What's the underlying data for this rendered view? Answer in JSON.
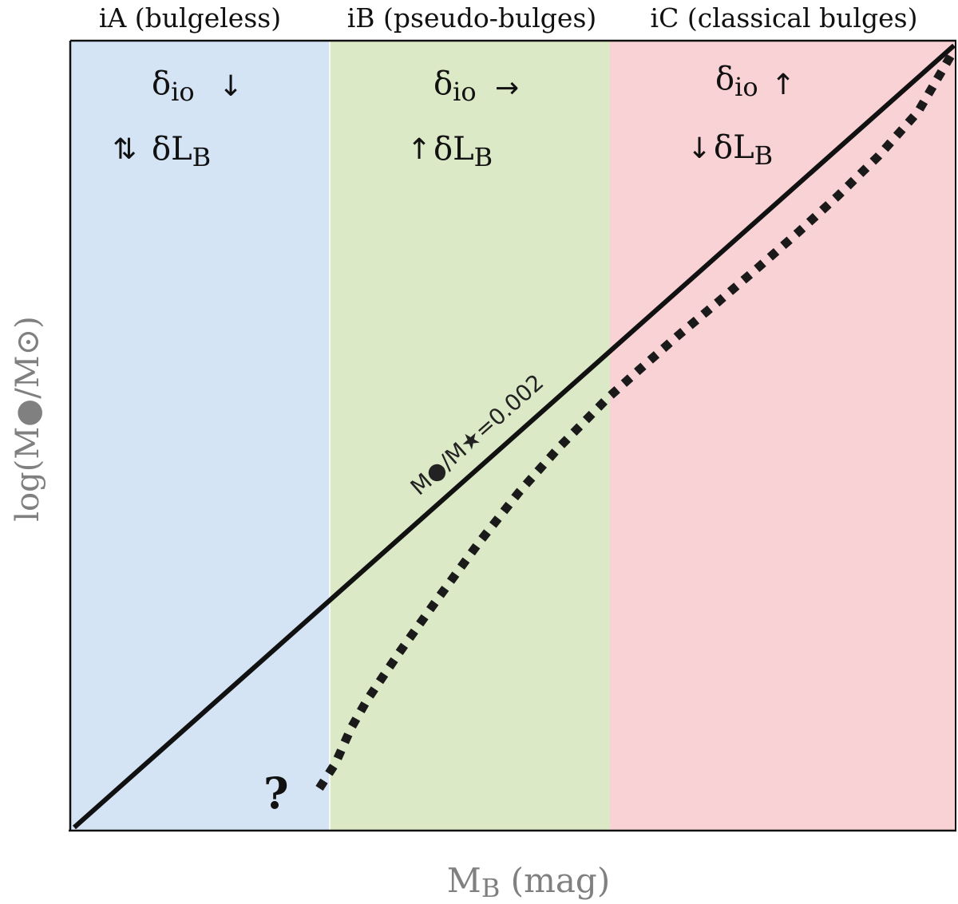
{
  "regions": [
    {
      "label": "iA (bulgeless)",
      "color": "#d4e4f4",
      "sigma_prefix": "δ",
      "sigma_sub": "io",
      "sigma_arrow": "↓",
      "lum_arrow": "⇅",
      "lum_prefix": "δL",
      "lum_sub": "B"
    },
    {
      "label": "iB (pseudo-bulges)",
      "color": "#dce9c6",
      "sigma_prefix": "δ",
      "sigma_sub": "io",
      "sigma_arrow": "→",
      "lum_arrow": "↑",
      "lum_prefix": "δL",
      "lum_sub": "B"
    },
    {
      "label": "iC (classical bulges)",
      "color": "#f9d2d6",
      "sigma_prefix": "δ",
      "sigma_sub": "io",
      "sigma_arrow": "↑",
      "lum_arrow": "↓",
      "lum_prefix": "δL",
      "lum_sub": "B"
    }
  ],
  "axes": {
    "xlabel_main": "M",
    "xlabel_sub": "B",
    "xlabel_unit": " (mag)",
    "ylabel": "log(M●/M⊙)",
    "label_color": "#808080"
  },
  "lines": {
    "solid_label": "M●/M★=0.002",
    "unknown_marker": "?"
  }
}
